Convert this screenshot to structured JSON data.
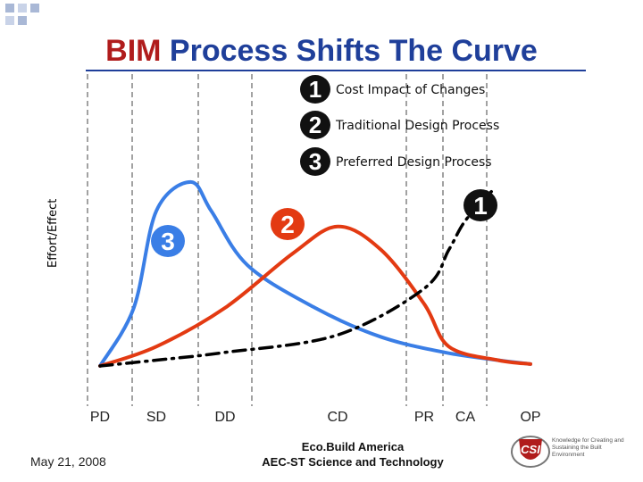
{
  "slide": {
    "title_part1": "BIM",
    "title_part2": "Process Shifts The Curve",
    "date": "May 21, 2008",
    "footer_line1": "Eco.Build America",
    "footer_line2": "AEC-ST Science and Technology",
    "logo_text": "CSI",
    "logo_tagline": "Knowledge for Creating and Sustaining the Built Environment",
    "colors": {
      "title": "#1f3f9a",
      "accent": "#b01c1c",
      "blue": "#3a7ee6",
      "red": "#e33a12"
    }
  },
  "chart_data": {
    "type": "line",
    "ylabel": "Effort/Effect",
    "categories": [
      "PD",
      "SD",
      "DD",
      "CD",
      "PR",
      "CA",
      "OP"
    ],
    "legend": [
      {
        "number": "1",
        "label": "Cost Impact of Changes"
      },
      {
        "number": "2",
        "label": "Traditional Design Process"
      },
      {
        "number": "3",
        "label": "Preferred Design Process"
      }
    ],
    "series": [
      {
        "name": "Cost Impact of Changes",
        "marker": "1",
        "color": "#000000",
        "style": "dash-dot",
        "x": [
          0,
          1,
          2,
          3,
          4,
          4.6,
          5,
          5.4
        ],
        "values": [
          0,
          3,
          7,
          16,
          40,
          60,
          75,
          90
        ]
      },
      {
        "name": "Traditional Design Process",
        "marker": "2",
        "color": "#e33a12",
        "style": "solid",
        "x": [
          0,
          1,
          2,
          2.6,
          3,
          3.5,
          4,
          4.6,
          5.5,
          6
        ],
        "values": [
          0,
          10,
          30,
          58,
          72,
          60,
          32,
          10,
          3,
          1
        ]
      },
      {
        "name": "Preferred Design Process",
        "marker": "3",
        "color": "#3a7ee6",
        "style": "solid",
        "x": [
          0,
          0.6,
          1,
          1.5,
          1.8,
          2.2,
          2.8,
          3.5,
          4.5,
          5.5,
          6
        ],
        "values": [
          0,
          30,
          80,
          95,
          80,
          52,
          30,
          15,
          7,
          3,
          1
        ]
      }
    ]
  }
}
